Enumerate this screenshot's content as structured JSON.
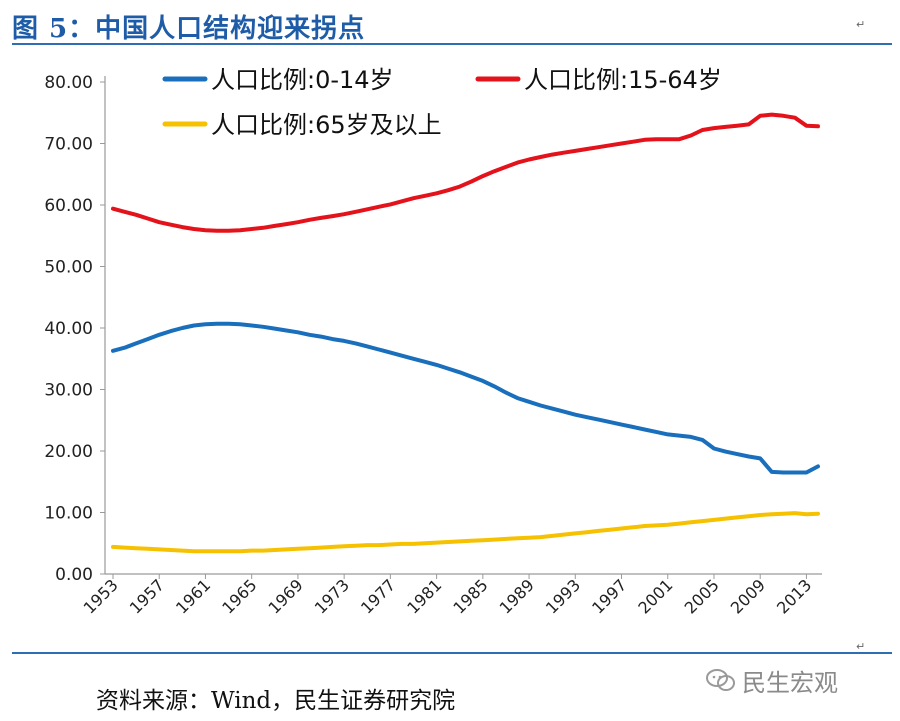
{
  "header": {
    "title": "图 5：中国人口结构迎来拐点",
    "return_mark": "↵"
  },
  "footer": {
    "source": "资料来源：Wind，民生证券研究院",
    "watermark_text": "民生宏观"
  },
  "chart_data": {
    "type": "line",
    "title": "中国人口结构迎来拐点",
    "xlabel": "",
    "ylabel": "",
    "ylim": [
      0,
      80
    ],
    "yticks": [
      "0.00",
      "10.00",
      "20.00",
      "30.00",
      "40.00",
      "50.00",
      "60.00",
      "70.00",
      "80.00"
    ],
    "xticks": [
      "1953",
      "1957",
      "1961",
      "1965",
      "1969",
      "1973",
      "1977",
      "1981",
      "1985",
      "1989",
      "1993",
      "1997",
      "2001",
      "2005",
      "2009",
      "2013"
    ],
    "x": [
      1953,
      1954,
      1955,
      1956,
      1957,
      1958,
      1959,
      1960,
      1961,
      1962,
      1963,
      1964,
      1965,
      1966,
      1967,
      1968,
      1969,
      1970,
      1971,
      1972,
      1973,
      1974,
      1975,
      1976,
      1977,
      1978,
      1979,
      1980,
      1981,
      1982,
      1983,
      1984,
      1985,
      1986,
      1987,
      1988,
      1989,
      1990,
      1991,
      1992,
      1993,
      1994,
      1995,
      1996,
      1997,
      1998,
      1999,
      2000,
      2001,
      2002,
      2003,
      2004,
      2005,
      2006,
      2007,
      2008,
      2009,
      2010,
      2011,
      2012,
      2013,
      2014
    ],
    "series": [
      {
        "name": "人口比例:0-14岁",
        "color": "#1a6fbd",
        "values": [
          36.3,
          36.8,
          37.5,
          38.2,
          38.9,
          39.5,
          40.0,
          40.4,
          40.6,
          40.7,
          40.7,
          40.6,
          40.4,
          40.2,
          39.9,
          39.6,
          39.3,
          38.9,
          38.6,
          38.2,
          37.9,
          37.5,
          37.0,
          36.5,
          36.0,
          35.5,
          35.0,
          34.5,
          34.0,
          33.4,
          32.8,
          32.1,
          31.4,
          30.5,
          29.5,
          28.6,
          28.0,
          27.4,
          26.9,
          26.4,
          25.9,
          25.5,
          25.1,
          24.7,
          24.3,
          23.9,
          23.5,
          23.1,
          22.7,
          22.5,
          22.3,
          21.8,
          20.4,
          19.9,
          19.5,
          19.1,
          18.8,
          16.6,
          16.5,
          16.5,
          16.5,
          17.5
        ]
      },
      {
        "name": "人口比例:15-64岁",
        "color": "#e3121b",
        "values": [
          59.4,
          58.9,
          58.4,
          57.8,
          57.2,
          56.8,
          56.4,
          56.1,
          55.9,
          55.8,
          55.8,
          55.9,
          56.1,
          56.3,
          56.6,
          56.9,
          57.2,
          57.6,
          57.9,
          58.2,
          58.5,
          58.9,
          59.3,
          59.7,
          60.1,
          60.6,
          61.1,
          61.5,
          61.9,
          62.4,
          63.0,
          63.8,
          64.7,
          65.5,
          66.2,
          66.9,
          67.4,
          67.8,
          68.2,
          68.5,
          68.8,
          69.1,
          69.4,
          69.7,
          70.0,
          70.3,
          70.6,
          70.7,
          70.7,
          70.7,
          71.3,
          72.2,
          72.5,
          72.7,
          72.9,
          73.1,
          74.5,
          74.7,
          74.5,
          74.2,
          72.9,
          72.8
        ]
      },
      {
        "name": "人口比例:65岁及以上",
        "color": "#f5c100",
        "values": [
          4.4,
          4.3,
          4.2,
          4.1,
          4.0,
          3.9,
          3.8,
          3.7,
          3.7,
          3.7,
          3.7,
          3.7,
          3.8,
          3.8,
          3.9,
          4.0,
          4.1,
          4.2,
          4.3,
          4.4,
          4.5,
          4.6,
          4.7,
          4.7,
          4.8,
          4.9,
          4.9,
          5.0,
          5.1,
          5.2,
          5.3,
          5.4,
          5.5,
          5.6,
          5.7,
          5.8,
          5.9,
          6.0,
          6.2,
          6.4,
          6.6,
          6.8,
          7.0,
          7.2,
          7.4,
          7.6,
          7.8,
          7.9,
          8.0,
          8.2,
          8.4,
          8.6,
          8.8,
          9.0,
          9.2,
          9.4,
          9.6,
          9.7,
          9.8,
          9.9,
          9.7,
          9.8
        ]
      }
    ]
  }
}
